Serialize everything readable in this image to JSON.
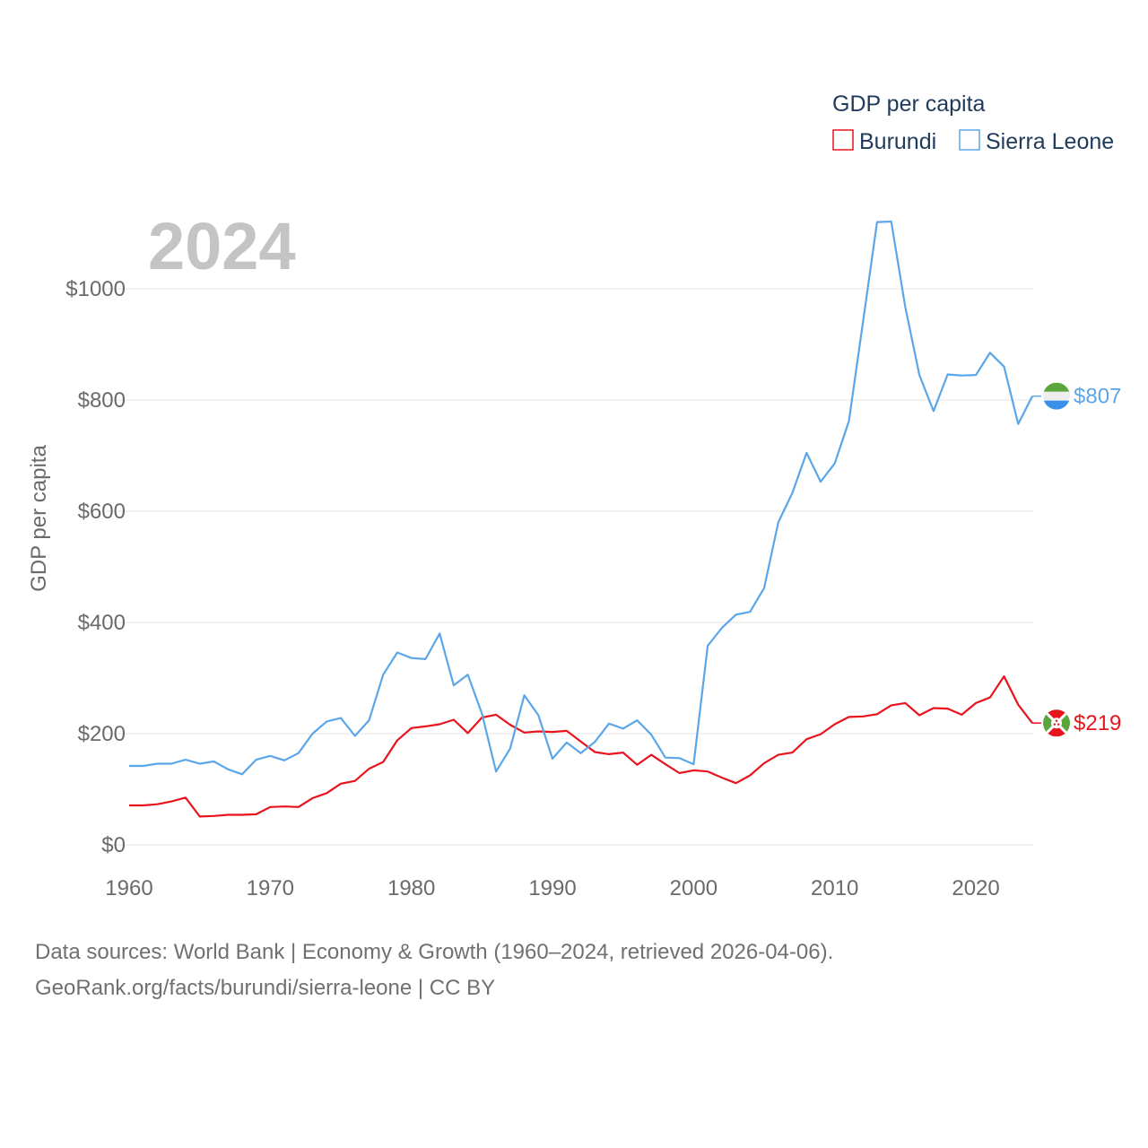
{
  "chart_data": {
    "type": "line",
    "year_label": "2024",
    "legend_title": "GDP per capita",
    "ylabel": "GDP per capita",
    "xlabel": "",
    "xlim": [
      1960,
      2024
    ],
    "ylim": [
      0,
      1150
    ],
    "y_ticks": [
      {
        "value": 0,
        "label": "$0"
      },
      {
        "value": 200,
        "label": "$200"
      },
      {
        "value": 400,
        "label": "$400"
      },
      {
        "value": 600,
        "label": "$600"
      },
      {
        "value": 800,
        "label": "$800"
      },
      {
        "value": 1000,
        "label": "$1000"
      }
    ],
    "x_ticks": [
      {
        "value": 1960,
        "label": "1960"
      },
      {
        "value": 1970,
        "label": "1970"
      },
      {
        "value": 1980,
        "label": "1980"
      },
      {
        "value": 1990,
        "label": "1990"
      },
      {
        "value": 2000,
        "label": "2000"
      },
      {
        "value": 2010,
        "label": "2010"
      },
      {
        "value": 2020,
        "label": "2020"
      }
    ],
    "x": [
      1960,
      1961,
      1962,
      1963,
      1964,
      1965,
      1966,
      1967,
      1968,
      1969,
      1970,
      1971,
      1972,
      1973,
      1974,
      1975,
      1976,
      1977,
      1978,
      1979,
      1980,
      1981,
      1982,
      1983,
      1984,
      1985,
      1986,
      1987,
      1988,
      1989,
      1990,
      1991,
      1992,
      1993,
      1994,
      1995,
      1996,
      1997,
      1998,
      1999,
      2000,
      2001,
      2002,
      2003,
      2004,
      2005,
      2006,
      2007,
      2008,
      2009,
      2010,
      2011,
      2012,
      2013,
      2014,
      2015,
      2016,
      2017,
      2018,
      2019,
      2020,
      2021,
      2022,
      2023,
      2024
    ],
    "series": [
      {
        "name": "Burundi",
        "color": "#e8141d",
        "end_label": "$219",
        "flag": "burundi-flag",
        "values": [
          71,
          71,
          73,
          78,
          85,
          51,
          52,
          54,
          54,
          55,
          68,
          69,
          68,
          84,
          93,
          110,
          115,
          137,
          149,
          188,
          210,
          213,
          217,
          225,
          201,
          229,
          234,
          216,
          202,
          204,
          203,
          205,
          186,
          167,
          163,
          166,
          144,
          162,
          145,
          129,
          134,
          132,
          121,
          111,
          125,
          147,
          162,
          166,
          190,
          199,
          217,
          230,
          231,
          235,
          251,
          255,
          233,
          246,
          245,
          234,
          255,
          265,
          303,
          252,
          219
        ]
      },
      {
        "name": "Sierra Leone",
        "color": "#5ba6e8",
        "end_label": "$807",
        "flag": "sierra-leone-flag",
        "values": [
          142,
          142,
          146,
          146,
          153,
          146,
          150,
          136,
          127,
          153,
          160,
          152,
          165,
          200,
          222,
          228,
          196,
          224,
          306,
          346,
          336,
          334,
          380,
          287,
          306,
          236,
          132,
          173,
          269,
          233,
          155,
          184,
          165,
          185,
          218,
          209,
          224,
          198,
          157,
          156,
          145,
          358,
          390,
          414,
          419,
          462,
          580,
          633,
          705,
          653,
          686,
          762,
          940,
          1120,
          1121,
          967,
          845,
          780,
          846,
          844,
          845,
          885,
          860,
          757,
          807
        ]
      }
    ]
  },
  "footer": {
    "line1": "Data sources: World Bank | Economy & Growth (1960–2024, retrieved 2026-04-06).",
    "line2": "GeoRank.org/facts/burundi/sierra-leone | CC BY"
  }
}
